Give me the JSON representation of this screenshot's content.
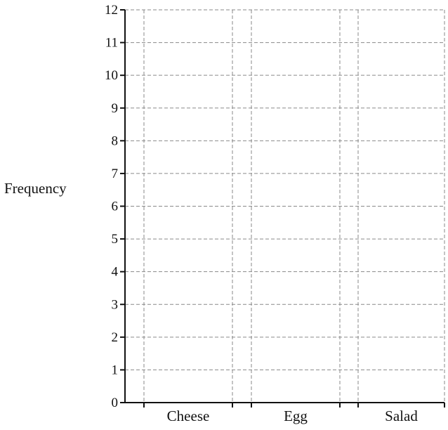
{
  "chart_data": {
    "type": "bar",
    "title": "",
    "xlabel": "",
    "ylabel": "Frequency",
    "categories": [
      "Cheese",
      "Egg",
      "Salad"
    ],
    "series": [
      {
        "values": [
          null,
          null,
          null
        ]
      }
    ],
    "ylim": [
      0,
      12
    ],
    "yticks": [
      0,
      1,
      2,
      3,
      4,
      5,
      6,
      7,
      8,
      9,
      10,
      11,
      12
    ],
    "grid": true,
    "legend": "none"
  }
}
